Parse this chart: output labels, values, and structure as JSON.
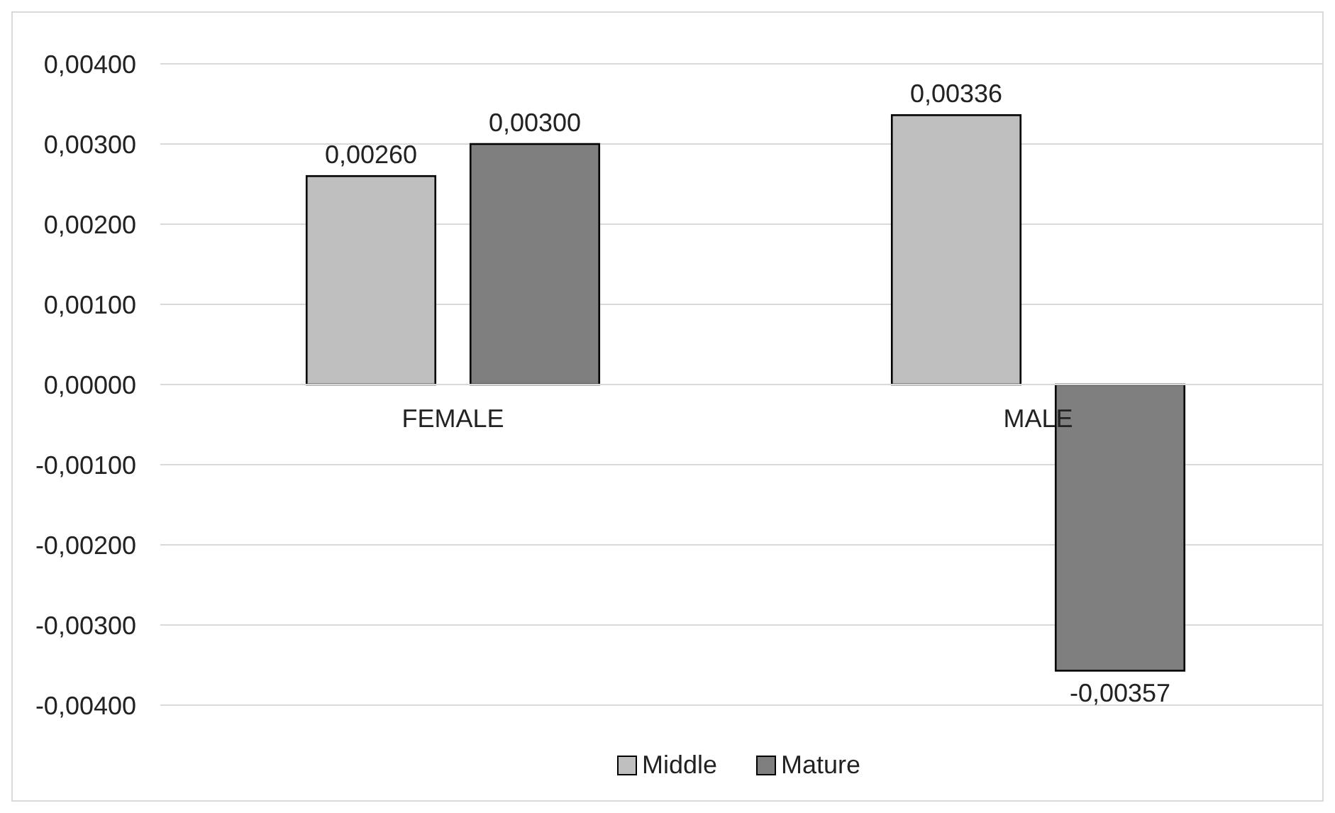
{
  "chart_data": {
    "type": "bar",
    "categories": [
      "FEMALE",
      "MALE"
    ],
    "series": [
      {
        "name": "Middle",
        "color": "#bfbfbf",
        "values": [
          0.0026,
          0.00336
        ],
        "value_labels": [
          "0,00260",
          "0,00336"
        ]
      },
      {
        "name": "Mature",
        "color": "#7f7f7f",
        "values": [
          0.003,
          -0.00357
        ],
        "value_labels": [
          "0,00300",
          "-0,00357"
        ]
      }
    ],
    "ylim": [
      -0.004,
      0.004
    ],
    "yticks": [
      {
        "value": -0.004,
        "label": "-0,00400"
      },
      {
        "value": -0.003,
        "label": "-0,00300"
      },
      {
        "value": -0.002,
        "label": "-0,00200"
      },
      {
        "value": -0.001,
        "label": "-0,00100"
      },
      {
        "value": 0,
        "label": "0,00000"
      },
      {
        "value": 0.001,
        "label": "0,00100"
      },
      {
        "value": 0.002,
        "label": "0,00200"
      },
      {
        "value": 0.003,
        "label": "0,00300"
      },
      {
        "value": 0.004,
        "label": "0,00400"
      }
    ],
    "grid": "y",
    "legend": "bottom"
  }
}
